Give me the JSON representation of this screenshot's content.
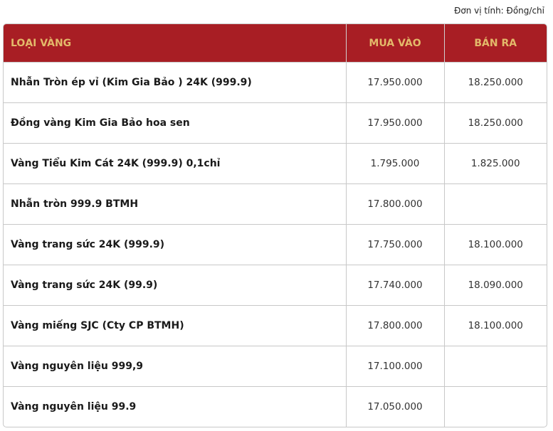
{
  "unit_label": "Đơn vị tính: Đồng/chỉ",
  "colors": {
    "header_bg": "#a81e24",
    "header_text": "#e3b96a"
  },
  "table": {
    "headers": [
      "LOẠI VÀNG",
      "MUA VÀO",
      "BÁN RA"
    ],
    "rows": [
      {
        "name": "Nhẫn Tròn ép vỉ (Kim Gia Bảo ) 24K (999.9)",
        "buy": "17.950.000",
        "sell": "18.250.000"
      },
      {
        "name": "Đồng vàng Kim Gia Bảo hoa sen",
        "buy": "17.950.000",
        "sell": "18.250.000"
      },
      {
        "name": "Vàng Tiểu Kim Cát 24K (999.9) 0,1chỉ",
        "buy": "1.795.000",
        "sell": "1.825.000"
      },
      {
        "name": "Nhẫn tròn 999.9 BTMH",
        "buy": "17.800.000",
        "sell": ""
      },
      {
        "name": "Vàng trang sức 24K (999.9)",
        "buy": "17.750.000",
        "sell": "18.100.000"
      },
      {
        "name": "Vàng trang sức 24K (99.9)",
        "buy": "17.740.000",
        "sell": "18.090.000"
      },
      {
        "name": "Vàng miếng SJC (Cty CP BTMH)",
        "buy": "17.800.000",
        "sell": "18.100.000"
      },
      {
        "name": "Vàng nguyên liệu 999,9",
        "buy": "17.100.000",
        "sell": ""
      },
      {
        "name": "Vàng nguyên liệu 99.9",
        "buy": "17.050.000",
        "sell": ""
      }
    ]
  }
}
